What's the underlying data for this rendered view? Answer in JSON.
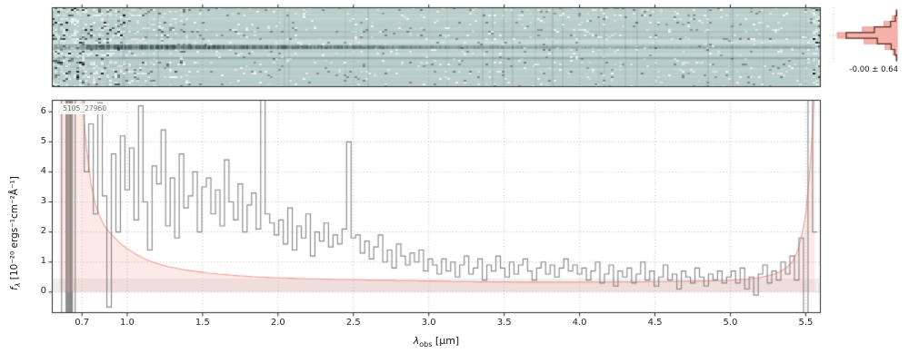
{
  "figure": {
    "title": "5105_27960"
  },
  "axes": {
    "xticks": [
      0.7,
      1.0,
      1.5,
      2.0,
      2.5,
      3.0,
      3.5,
      4.0,
      4.5,
      5.0,
      5.5
    ],
    "xtick_labels": [
      "0.7",
      "1.0",
      "1.5",
      "2.0",
      "2.5",
      "3.0",
      "3.5",
      "4.0",
      "4.5",
      "5.0",
      "5.5"
    ],
    "yticks": [
      0,
      1,
      2,
      3,
      4,
      5,
      6
    ],
    "ytick_labels": [
      "0",
      "1",
      "2",
      "3",
      "4",
      "5",
      "6"
    ],
    "xlabel": {
      "sym": "λ",
      "sub": "obs",
      "units": " [μm]"
    },
    "ylabel": {
      "sym": "f",
      "sub": "λ",
      "units": " [10⁻²⁰ ergs⁻¹cm⁻²Å⁻¹]"
    }
  },
  "styles": {
    "flux_color": "rgba(128,128,128,0.92)",
    "error_color": "#f2a09a",
    "error_fill": "rgba(246,178,170,0.28)",
    "grid_color": "rgba(80,80,80,0.45)",
    "axis_color": "#2b2b2b",
    "band_color": "rgba(150,150,150,0.15)",
    "panel2d_bg": "#b7cdc9",
    "panel2d_seed": 11,
    "hist_fill": "#f6b2aa",
    "hist_line": "#4f2d27",
    "saturated_color": "rgba(130,130,130,0.9)",
    "title_color": "#757575"
  },
  "chart_data": {
    "type": "line",
    "title": "5105_27960",
    "xlabel": "lambda_obs [micron]",
    "ylabel": "f_lambda [1e-20 erg s-1 cm-2 A-1]",
    "xlim": [
      0.5,
      5.6
    ],
    "ylim": [
      -0.7,
      6.4
    ],
    "grid": true,
    "legend": false,
    "x": [
      0.55,
      0.58,
      0.61,
      0.64,
      0.67,
      0.7,
      0.73,
      0.76,
      0.79,
      0.82,
      0.85,
      0.88,
      0.91,
      0.94,
      0.97,
      1.0,
      1.03,
      1.06,
      1.09,
      1.12,
      1.15,
      1.18,
      1.21,
      1.24,
      1.27,
      1.3,
      1.33,
      1.36,
      1.39,
      1.42,
      1.45,
      1.48,
      1.51,
      1.54,
      1.57,
      1.6,
      1.63,
      1.66,
      1.69,
      1.72,
      1.75,
      1.78,
      1.81,
      1.84,
      1.87,
      1.9,
      1.93,
      1.96,
      1.99,
      2.02,
      2.05,
      2.08,
      2.11,
      2.14,
      2.17,
      2.2,
      2.23,
      2.26,
      2.29,
      2.32,
      2.35,
      2.38,
      2.41,
      2.44,
      2.47,
      2.5,
      2.53,
      2.56,
      2.59,
      2.62,
      2.65,
      2.68,
      2.71,
      2.74,
      2.77,
      2.8,
      2.83,
      2.86,
      2.89,
      2.92,
      2.95,
      2.98,
      3.01,
      3.04,
      3.07,
      3.1,
      3.13,
      3.16,
      3.19,
      3.22,
      3.25,
      3.28,
      3.31,
      3.34,
      3.37,
      3.4,
      3.43,
      3.46,
      3.49,
      3.52,
      3.55,
      3.58,
      3.61,
      3.64,
      3.67,
      3.7,
      3.73,
      3.76,
      3.79,
      3.82,
      3.85,
      3.88,
      3.91,
      3.94,
      3.97,
      4.0,
      4.03,
      4.06,
      4.09,
      4.12,
      4.15,
      4.18,
      4.21,
      4.24,
      4.27,
      4.3,
      4.33,
      4.36,
      4.39,
      4.42,
      4.45,
      4.48,
      4.51,
      4.54,
      4.57,
      4.6,
      4.63,
      4.66,
      4.69,
      4.72,
      4.75,
      4.78,
      4.81,
      4.84,
      4.87,
      4.9,
      4.93,
      4.96,
      4.99,
      5.02,
      5.05,
      5.08,
      5.11,
      5.14,
      5.17,
      5.2,
      5.23,
      5.26,
      5.29,
      5.32,
      5.35,
      5.38,
      5.41,
      5.44,
      5.47,
      5.5,
      5.53,
      5.56
    ],
    "series": [
      {
        "name": "flux_1d",
        "style": "steps-mid",
        "color": "#808080",
        "values": [
          9.0,
          -5.0,
          12.0,
          -8.0,
          10.0,
          6.8,
          4.0,
          5.6,
          2.6,
          6.3,
          3.2,
          -0.5,
          4.6,
          2.0,
          5.2,
          3.4,
          4.8,
          2.4,
          6.2,
          3.0,
          1.4,
          4.2,
          3.6,
          5.4,
          2.2,
          3.8,
          1.8,
          4.6,
          2.8,
          3.2,
          4.0,
          2.0,
          3.5,
          3.8,
          2.6,
          3.4,
          2.2,
          4.4,
          3.0,
          2.4,
          3.6,
          2.0,
          2.9,
          3.3,
          2.1,
          6.4,
          2.6,
          2.3,
          1.9,
          2.4,
          1.6,
          2.8,
          1.4,
          2.2,
          1.8,
          2.6,
          1.2,
          2.0,
          1.7,
          2.3,
          1.5,
          1.9,
          1.6,
          2.1,
          5.0,
          1.8,
          1.9,
          1.3,
          1.7,
          1.1,
          1.5,
          1.9,
          1.0,
          1.4,
          0.8,
          1.6,
          1.2,
          0.9,
          1.3,
          1.0,
          1.4,
          0.7,
          1.1,
          0.9,
          0.6,
          1.1,
          0.7,
          1.0,
          0.5,
          0.9,
          1.2,
          0.6,
          0.8,
          1.1,
          0.4,
          0.9,
          0.7,
          1.2,
          0.8,
          0.5,
          1.0,
          0.6,
          0.9,
          1.1,
          0.7,
          0.4,
          0.8,
          1.0,
          0.6,
          0.9,
          0.5,
          0.8,
          1.1,
          0.7,
          0.9,
          0.6,
          0.8,
          0.4,
          0.7,
          1.0,
          0.3,
          0.6,
          0.9,
          0.2,
          0.7,
          0.5,
          0.8,
          0.3,
          0.6,
          1.0,
          0.4,
          0.7,
          0.2,
          0.5,
          0.9,
          0.4,
          0.6,
          0.1,
          0.7,
          0.5,
          0.3,
          0.8,
          0.5,
          0.2,
          0.6,
          0.4,
          0.7,
          0.3,
          0.5,
          0.7,
          0.3,
          0.8,
          0.1,
          0.5,
          -0.1,
          0.6,
          0.9,
          0.3,
          0.7,
          0.4,
          1.0,
          0.6,
          1.2,
          0.4,
          1.8,
          -3.0,
          8.0,
          2.0
        ]
      },
      {
        "name": "uncertainty_1d",
        "style": "line",
        "color": "#f2a09a",
        "values": [
          9.0,
          9.0,
          9.0,
          8.5,
          8.0,
          6.5,
          4.8,
          3.6,
          2.9,
          2.5,
          2.2,
          2.0,
          1.85,
          1.7,
          1.55,
          1.45,
          1.35,
          1.25,
          1.18,
          1.1,
          1.04,
          0.98,
          0.93,
          0.89,
          0.85,
          0.82,
          0.79,
          0.76,
          0.73,
          0.71,
          0.69,
          0.67,
          0.65,
          0.63,
          0.62,
          0.6,
          0.59,
          0.58,
          0.56,
          0.55,
          0.54,
          0.53,
          0.52,
          0.51,
          0.5,
          0.5,
          0.49,
          0.48,
          0.48,
          0.47,
          0.47,
          0.46,
          0.46,
          0.45,
          0.45,
          0.44,
          0.44,
          0.44,
          0.43,
          0.43,
          0.43,
          0.42,
          0.42,
          0.42,
          0.42,
          0.41,
          0.41,
          0.41,
          0.4,
          0.4,
          0.4,
          0.39,
          0.39,
          0.39,
          0.39,
          0.38,
          0.38,
          0.38,
          0.38,
          0.38,
          0.37,
          0.37,
          0.37,
          0.37,
          0.36,
          0.36,
          0.36,
          0.35,
          0.35,
          0.35,
          0.35,
          0.35,
          0.34,
          0.34,
          0.34,
          0.34,
          0.34,
          0.34,
          0.34,
          0.34,
          0.33,
          0.33,
          0.33,
          0.33,
          0.33,
          0.33,
          0.33,
          0.33,
          0.33,
          0.33,
          0.33,
          0.33,
          0.33,
          0.33,
          0.33,
          0.33,
          0.33,
          0.33,
          0.33,
          0.33,
          0.33,
          0.33,
          0.33,
          0.34,
          0.34,
          0.34,
          0.34,
          0.34,
          0.34,
          0.34,
          0.34,
          0.35,
          0.35,
          0.35,
          0.35,
          0.35,
          0.35,
          0.36,
          0.36,
          0.36,
          0.36,
          0.36,
          0.37,
          0.37,
          0.37,
          0.38,
          0.38,
          0.38,
          0.39,
          0.4,
          0.41,
          0.42,
          0.43,
          0.45,
          0.47,
          0.49,
          0.52,
          0.55,
          0.6,
          0.66,
          0.74,
          0.85,
          1.0,
          1.3,
          1.8,
          2.6,
          4.2,
          6.8
        ]
      }
    ],
    "saturated_bands": [
      {
        "x0": 0.595,
        "x1": 0.64
      }
    ],
    "histogram": {
      "label": "-0.00 ± 0.64",
      "value_range": [
        -2.5,
        2.5
      ],
      "bin_edges": [
        -2.25,
        -1.75,
        -1.25,
        -0.75,
        -0.25,
        0.25,
        0.75,
        1.25,
        1.75,
        2.25
      ],
      "counts": [
        0.01,
        0.04,
        0.1,
        0.33,
        0.85,
        0.38,
        0.11,
        0.03,
        0.01
      ],
      "model_counts": [
        0.02,
        0.07,
        0.2,
        0.55,
        1.0,
        0.58,
        0.22,
        0.08,
        0.02
      ]
    }
  }
}
